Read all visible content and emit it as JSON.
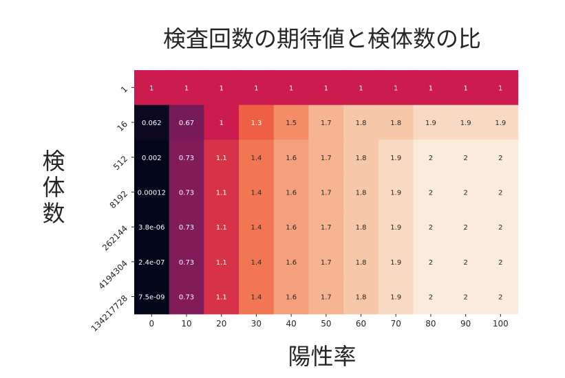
{
  "chart_data": {
    "type": "heatmap",
    "title": "検査回数の期待値と検体数の比",
    "xlabel": "陽性率",
    "ylabel": "検体数",
    "x_categories": [
      "0",
      "10",
      "20",
      "30",
      "40",
      "50",
      "60",
      "70",
      "80",
      "90",
      "100"
    ],
    "y_categories": [
      "1",
      "16",
      "512",
      "8192",
      "262144",
      "4194304",
      "134217728"
    ],
    "values": [
      [
        1,
        1,
        1,
        1,
        1,
        1,
        1,
        1,
        1,
        1,
        1
      ],
      [
        0.062,
        0.67,
        1,
        1.3,
        1.5,
        1.7,
        1.8,
        1.8,
        1.9,
        1.9,
        1.9
      ],
      [
        0.002,
        0.73,
        1.1,
        1.4,
        1.6,
        1.7,
        1.8,
        1.9,
        2,
        2,
        2
      ],
      [
        0.00012,
        0.73,
        1.1,
        1.4,
        1.6,
        1.7,
        1.8,
        1.9,
        2,
        2,
        2
      ],
      [
        3.8e-06,
        0.73,
        1.1,
        1.4,
        1.6,
        1.7,
        1.8,
        1.9,
        2,
        2,
        2
      ],
      [
        2.4e-07,
        0.73,
        1.1,
        1.4,
        1.6,
        1.7,
        1.8,
        1.9,
        2,
        2,
        2
      ],
      [
        7.5e-09,
        0.73,
        1.1,
        1.4,
        1.6,
        1.7,
        1.8,
        1.9,
        2,
        2,
        2
      ]
    ],
    "annotations": [
      [
        "1",
        "1",
        "1",
        "1",
        "1",
        "1",
        "1",
        "1",
        "1",
        "1",
        "1"
      ],
      [
        "0.062",
        "0.67",
        "1",
        "1.3",
        "1.5",
        "1.7",
        "1.8",
        "1.8",
        "1.9",
        "1.9",
        "1.9"
      ],
      [
        "0.002",
        "0.73",
        "1.1",
        "1.4",
        "1.6",
        "1.7",
        "1.8",
        "1.9",
        "2",
        "2",
        "2"
      ],
      [
        "0.00012",
        "0.73",
        "1.1",
        "1.4",
        "1.6",
        "1.7",
        "1.8",
        "1.9",
        "2",
        "2",
        "2"
      ],
      [
        "3.8e-06",
        "0.73",
        "1.1",
        "1.4",
        "1.6",
        "1.7",
        "1.8",
        "1.9",
        "2",
        "2",
        "2"
      ],
      [
        "2.4e-07",
        "0.73",
        "1.1",
        "1.4",
        "1.6",
        "1.7",
        "1.8",
        "1.9",
        "2",
        "2",
        "2"
      ],
      [
        "7.5e-09",
        "0.73",
        "1.1",
        "1.4",
        "1.6",
        "1.7",
        "1.8",
        "1.9",
        "2",
        "2",
        "2"
      ]
    ],
    "value_range": [
      0,
      2
    ],
    "colorscale": "rocket",
    "colorbar": false,
    "grid": false
  }
}
